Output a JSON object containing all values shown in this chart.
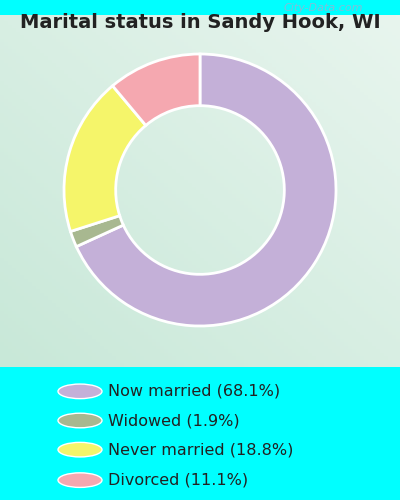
{
  "title": "Marital status in Sandy Hook, WI",
  "slices": [
    68.1,
    1.9,
    18.8,
    11.1
  ],
  "labels": [
    "Now married (68.1%)",
    "Widowed (1.9%)",
    "Never married (18.8%)",
    "Divorced (11.1%)"
  ],
  "colors": [
    "#c4b0d8",
    "#a8b890",
    "#f5f56a",
    "#f5a8b0"
  ],
  "outer_bg": "#00ffff",
  "chart_bg_top": "#e8f5ee",
  "chart_bg_bottom": "#d0ede0",
  "title_fontsize": 14,
  "legend_fontsize": 11.5,
  "watermark": "City-Data.com",
  "start_angle": 90,
  "donut_width": 0.38,
  "title_color": "#222222"
}
